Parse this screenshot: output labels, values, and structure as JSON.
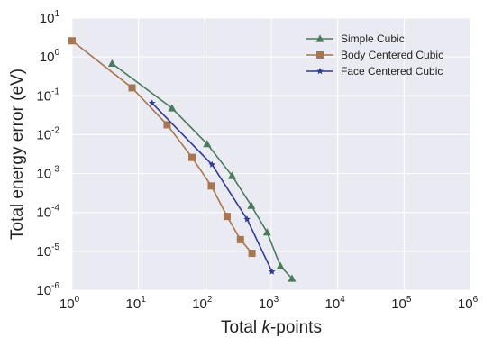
{
  "chart_data": {
    "type": "line",
    "xlabel": {
      "pre": "Total ",
      "italic": "k",
      "post": "-points"
    },
    "ylabel": "Total energy error (eV)",
    "xscale": "log",
    "yscale": "log",
    "xlim": [
      1,
      1000000
    ],
    "ylim": [
      1e-06,
      10
    ],
    "x_ticks": [
      {
        "base": "10",
        "exp": "0"
      },
      {
        "base": "10",
        "exp": "1"
      },
      {
        "base": "10",
        "exp": "2"
      },
      {
        "base": "10",
        "exp": "3"
      },
      {
        "base": "10",
        "exp": "4"
      },
      {
        "base": "10",
        "exp": "5"
      },
      {
        "base": "10",
        "exp": "6"
      }
    ],
    "y_ticks": [
      {
        "base": "10",
        "exp": "1"
      },
      {
        "base": "10",
        "exp": "0"
      },
      {
        "base": "10",
        "exp": "-1"
      },
      {
        "base": "10",
        "exp": "-2"
      },
      {
        "base": "10",
        "exp": "-3"
      },
      {
        "base": "10",
        "exp": "-4"
      },
      {
        "base": "10",
        "exp": "-5"
      },
      {
        "base": "10",
        "exp": "-6"
      }
    ],
    "grid": true,
    "legend_position": "top-right",
    "series": [
      {
        "name": "Simple Cubic",
        "color": "#4a7a5c",
        "marker": "triangle",
        "x": [
          4,
          32,
          108,
          256,
          500,
          864,
          1372,
          2048
        ],
        "y": [
          0.68,
          0.048,
          0.0058,
          0.00088,
          0.00015,
          3.1e-05,
          4.2e-06,
          2e-06
        ]
      },
      {
        "name": "Body Centered Cubic",
        "color": "#a8764e",
        "marker": "square",
        "x": [
          1,
          8,
          27,
          64,
          125,
          216,
          343,
          512
        ],
        "y": [
          2.6,
          0.16,
          0.018,
          0.0026,
          0.00048,
          7.9e-05,
          2e-05,
          8.9e-06
        ]
      },
      {
        "name": "Face Centered Cubic",
        "color": "#2e3a94",
        "marker": "star",
        "x": [
          16,
          128,
          432,
          1024
        ],
        "y": [
          0.065,
          0.0017,
          6.7e-05,
          3e-06
        ]
      }
    ]
  }
}
